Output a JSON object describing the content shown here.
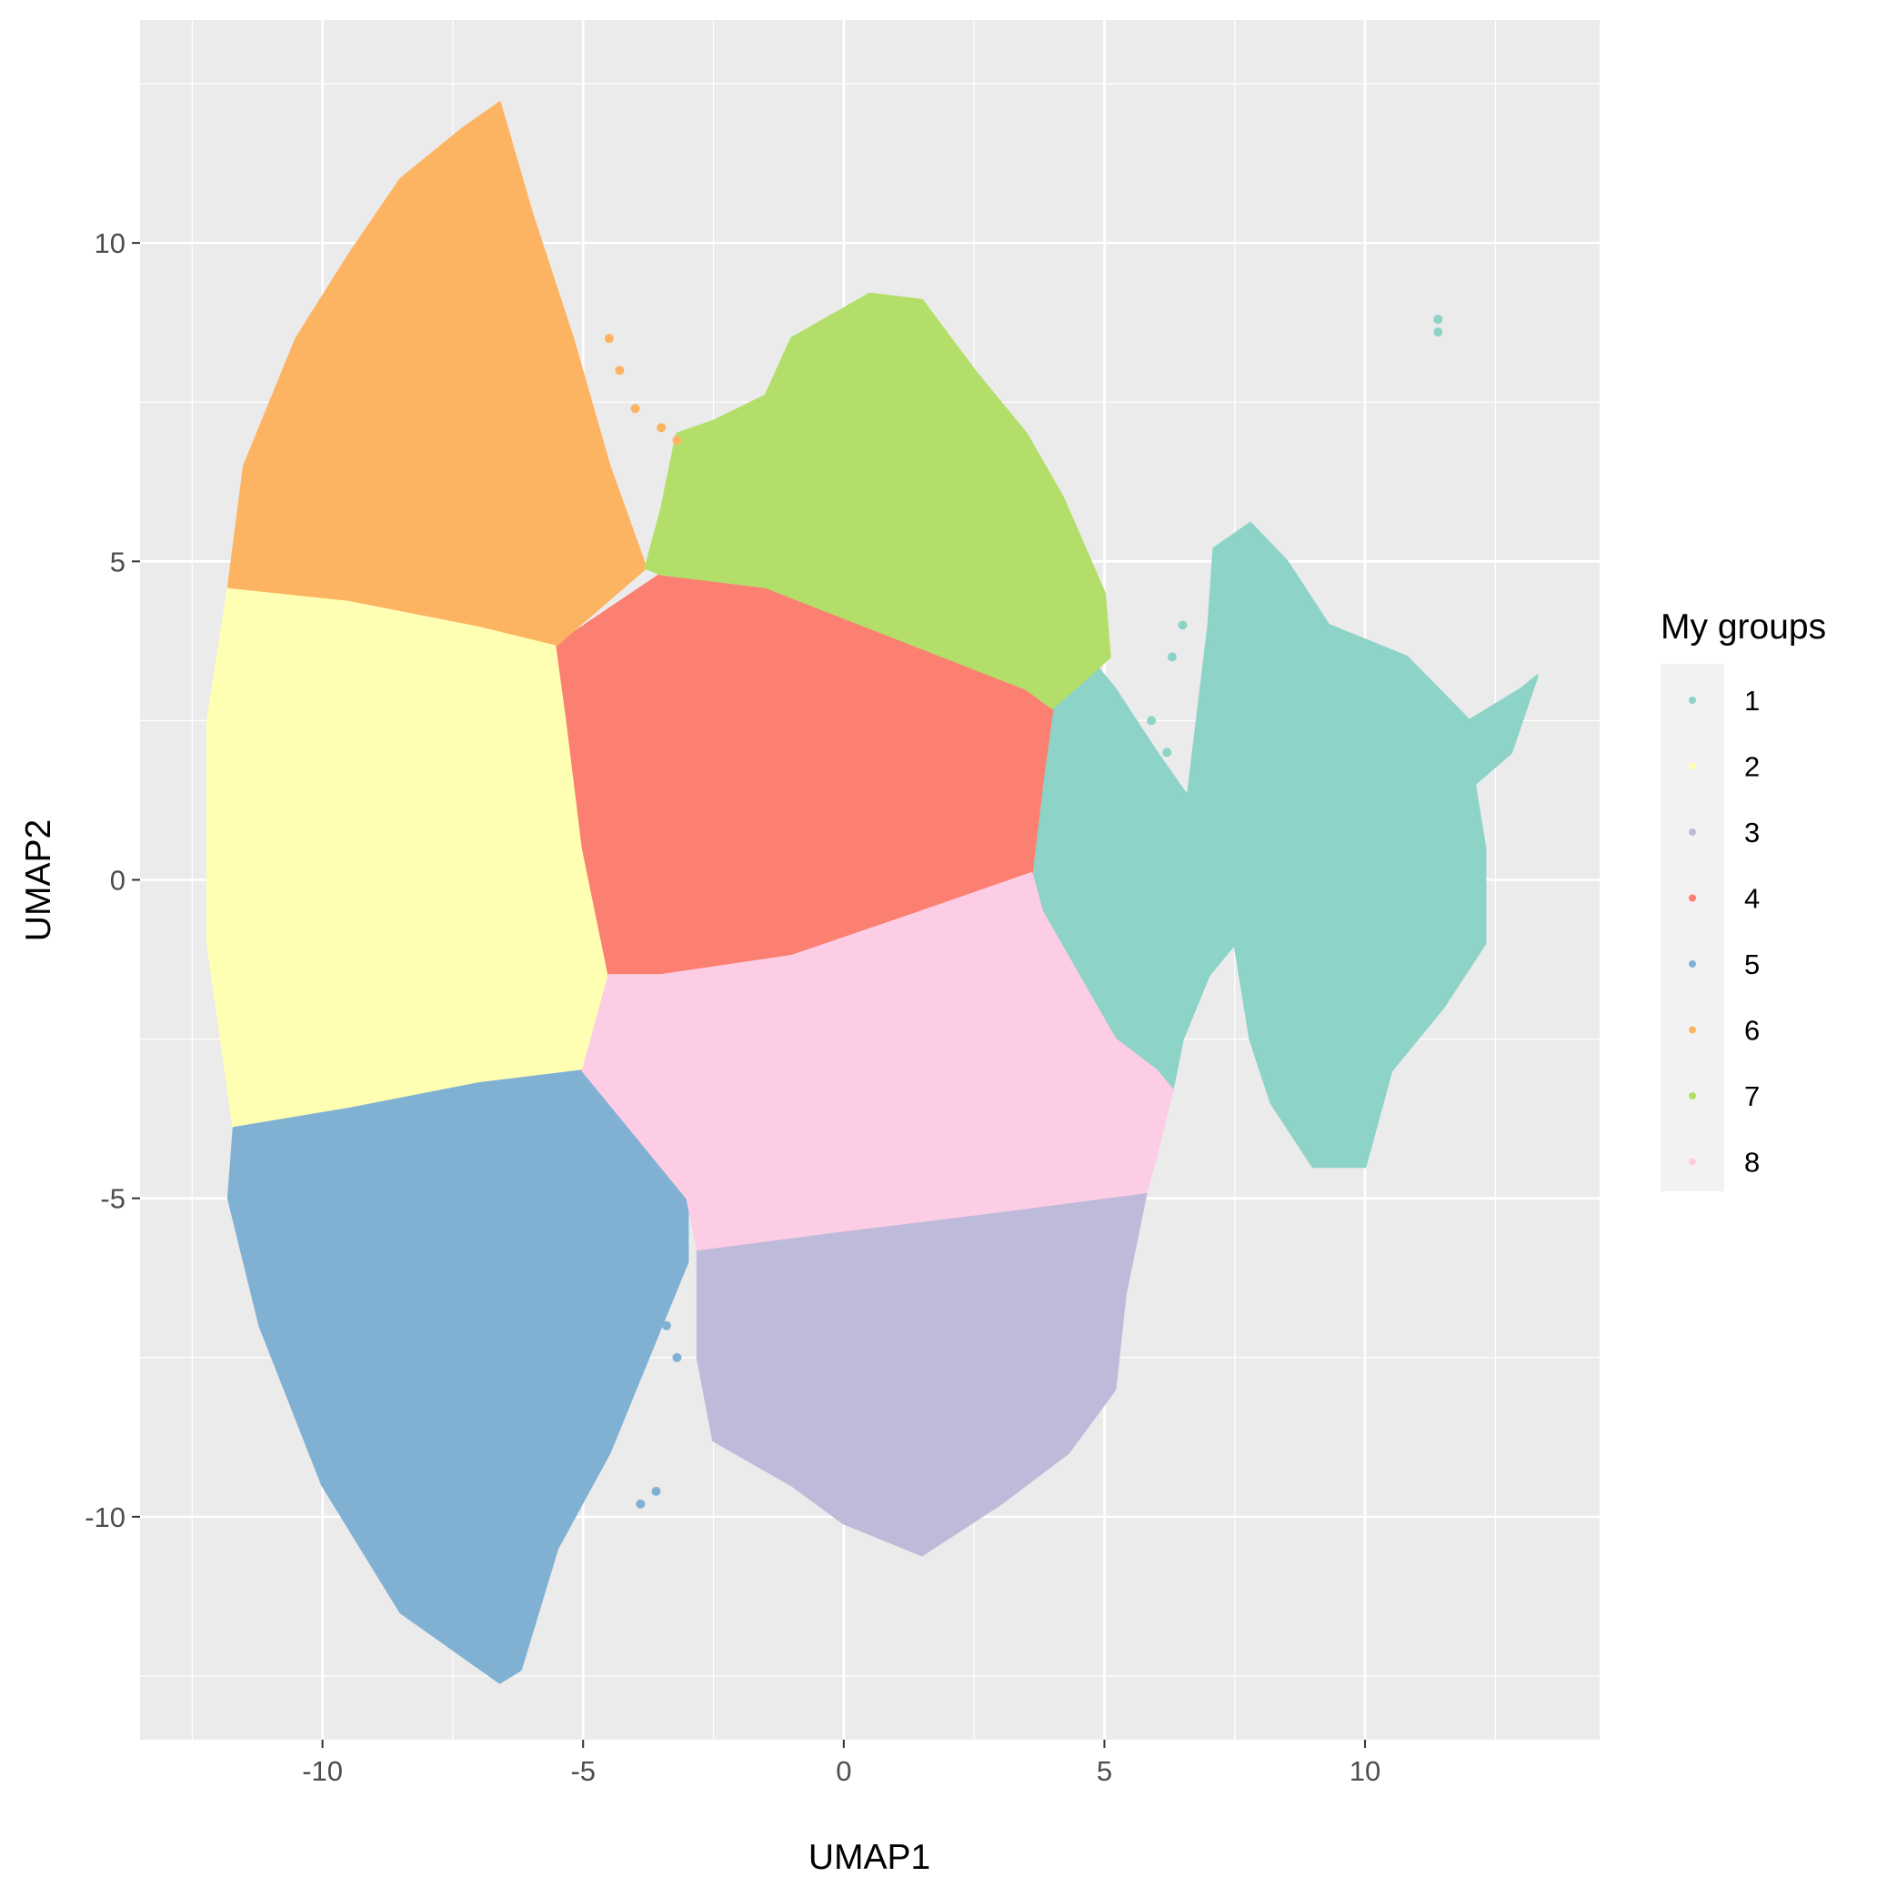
{
  "chart_data": {
    "type": "scatter",
    "title": "",
    "xlabel": "UMAP1",
    "ylabel": "UMAP2",
    "xlim": [
      -13.5,
      14.5
    ],
    "ylim": [
      -13.5,
      13.5
    ],
    "x_ticks": [
      -10,
      -5,
      0,
      5,
      10
    ],
    "y_ticks": [
      -10,
      -5,
      0,
      5,
      10
    ],
    "x_tick_labels": [
      "-10",
      "-5",
      "0",
      "5",
      "10"
    ],
    "y_tick_labels": [
      "-10",
      "-5",
      "0",
      "5",
      "10"
    ],
    "grid": true,
    "background": "#EBEBEB",
    "legend": {
      "title": "My groups",
      "position": "right",
      "entries": [
        "1",
        "2",
        "3",
        "4",
        "5",
        "6",
        "7",
        "8"
      ]
    },
    "series": [
      {
        "name": "1",
        "color": "#8DD3C7",
        "region": [
          [
            3.6,
            0.1
          ],
          [
            3.8,
            2.5
          ],
          [
            4.7,
            3.5
          ],
          [
            5.2,
            3.0
          ],
          [
            6.0,
            2.0
          ],
          [
            6.6,
            1.3
          ],
          [
            7.0,
            4.0
          ],
          [
            7.1,
            5.2
          ],
          [
            7.8,
            5.6
          ],
          [
            8.5,
            5.0
          ],
          [
            9.3,
            4.0
          ],
          [
            10.8,
            3.5
          ],
          [
            12.0,
            2.5
          ],
          [
            13.0,
            3.0
          ],
          [
            13.3,
            3.2
          ],
          [
            12.8,
            2.0
          ],
          [
            12.1,
            1.5
          ],
          [
            12.3,
            0.5
          ],
          [
            12.3,
            -1.0
          ],
          [
            11.5,
            -2.0
          ],
          [
            10.5,
            -3.0
          ],
          [
            10.0,
            -4.5
          ],
          [
            9.0,
            -4.5
          ],
          [
            8.2,
            -3.5
          ],
          [
            7.8,
            -2.5
          ],
          [
            7.5,
            -1.0
          ],
          [
            7.0,
            -1.5
          ],
          [
            6.5,
            -2.5
          ],
          [
            6.3,
            -3.3
          ],
          [
            6.0,
            -3.0
          ],
          [
            5.2,
            -2.5
          ],
          [
            4.5,
            -1.5
          ],
          [
            3.8,
            -0.5
          ]
        ]
      },
      {
        "name": "2",
        "color": "#FFFFB3",
        "region": [
          [
            -11.8,
            4.6
          ],
          [
            -9.5,
            4.4
          ],
          [
            -7.0,
            4.0
          ],
          [
            -5.5,
            3.7
          ],
          [
            -5.3,
            2.5
          ],
          [
            -5.0,
            0.5
          ],
          [
            -4.5,
            -1.5
          ],
          [
            -5.0,
            -3.0
          ],
          [
            -7.0,
            -3.2
          ],
          [
            -9.5,
            -3.6
          ],
          [
            -11.7,
            -3.9
          ],
          [
            -12.2,
            -1.0
          ],
          [
            -12.2,
            2.5
          ]
        ]
      },
      {
        "name": "3",
        "color": "#BEBADA",
        "region": [
          [
            -2.8,
            -5.8
          ],
          [
            0.0,
            -5.5
          ],
          [
            3.0,
            -5.2
          ],
          [
            5.8,
            -4.9
          ],
          [
            5.4,
            -6.5
          ],
          [
            5.2,
            -8.0
          ],
          [
            4.3,
            -9.0
          ],
          [
            3.0,
            -9.8
          ],
          [
            1.5,
            -10.6
          ],
          [
            0.0,
            -10.1
          ],
          [
            -1.0,
            -9.5
          ],
          [
            -2.5,
            -8.8
          ],
          [
            -2.8,
            -7.5
          ],
          [
            -2.8,
            -6.5
          ]
        ]
      },
      {
        "name": "4",
        "color": "#FB8072",
        "region": [
          [
            -5.5,
            3.7
          ],
          [
            -3.5,
            4.8
          ],
          [
            -1.5,
            4.6
          ],
          [
            1.0,
            3.8
          ],
          [
            3.5,
            3.0
          ],
          [
            4.0,
            2.7
          ],
          [
            3.8,
            1.5
          ],
          [
            3.6,
            0.1
          ],
          [
            1.5,
            -0.5
          ],
          [
            -1.0,
            -1.2
          ],
          [
            -3.5,
            -1.5
          ],
          [
            -4.5,
            -1.5
          ],
          [
            -5.0,
            0.5
          ],
          [
            -5.3,
            2.5
          ]
        ]
      },
      {
        "name": "5",
        "color": "#80B1D3",
        "region": [
          [
            -11.7,
            -3.9
          ],
          [
            -9.5,
            -3.6
          ],
          [
            -7.0,
            -3.2
          ],
          [
            -5.0,
            -3.0
          ],
          [
            -4.0,
            -4.0
          ],
          [
            -3.0,
            -5.0
          ],
          [
            -3.0,
            -6.0
          ],
          [
            -3.5,
            -7.0
          ],
          [
            -4.5,
            -9.0
          ],
          [
            -5.5,
            -10.5
          ],
          [
            -6.2,
            -12.4
          ],
          [
            -6.6,
            -12.6
          ],
          [
            -8.5,
            -11.5
          ],
          [
            -10.0,
            -9.5
          ],
          [
            -11.2,
            -7.0
          ],
          [
            -11.8,
            -5.0
          ]
        ]
      },
      {
        "name": "6",
        "color": "#FDB462",
        "region": [
          [
            -11.8,
            4.6
          ],
          [
            -11.5,
            6.5
          ],
          [
            -10.5,
            8.5
          ],
          [
            -9.5,
            9.8
          ],
          [
            -8.5,
            11.0
          ],
          [
            -7.3,
            11.8
          ],
          [
            -6.6,
            12.2
          ],
          [
            -6.0,
            10.5
          ],
          [
            -5.2,
            8.5
          ],
          [
            -4.5,
            6.5
          ],
          [
            -3.8,
            4.9
          ],
          [
            -5.5,
            3.7
          ],
          [
            -7.0,
            4.0
          ],
          [
            -9.5,
            4.4
          ]
        ]
      },
      {
        "name": "7",
        "color": "#B3DE69",
        "region": [
          [
            -3.8,
            4.9
          ],
          [
            -3.5,
            5.8
          ],
          [
            -3.2,
            7.0
          ],
          [
            -2.5,
            7.2
          ],
          [
            -1.5,
            7.6
          ],
          [
            -1.0,
            8.5
          ],
          [
            0.5,
            9.2
          ],
          [
            1.5,
            9.1
          ],
          [
            2.5,
            8.0
          ],
          [
            3.5,
            7.0
          ],
          [
            4.2,
            6.0
          ],
          [
            5.0,
            4.5
          ],
          [
            5.1,
            3.5
          ],
          [
            4.7,
            3.2
          ],
          [
            4.0,
            2.7
          ],
          [
            3.5,
            3.0
          ],
          [
            1.0,
            3.8
          ],
          [
            -1.5,
            4.6
          ],
          [
            -3.5,
            4.8
          ]
        ]
      },
      {
        "name": "8",
        "color": "#FCCDE5",
        "region": [
          [
            -4.5,
            -1.5
          ],
          [
            -3.5,
            -1.5
          ],
          [
            -1.0,
            -1.2
          ],
          [
            1.5,
            -0.5
          ],
          [
            3.6,
            0.1
          ],
          [
            3.8,
            -0.5
          ],
          [
            4.5,
            -1.5
          ],
          [
            5.2,
            -2.5
          ],
          [
            6.0,
            -3.0
          ],
          [
            6.3,
            -3.3
          ],
          [
            6.0,
            -4.3
          ],
          [
            5.8,
            -4.9
          ],
          [
            3.0,
            -5.2
          ],
          [
            0.0,
            -5.5
          ],
          [
            -2.8,
            -5.8
          ],
          [
            -3.0,
            -5.0
          ],
          [
            -4.0,
            -4.0
          ],
          [
            -5.0,
            -3.0
          ]
        ]
      }
    ],
    "outlier_points": [
      {
        "group": "1",
        "x": 11.4,
        "y": 8.8
      },
      {
        "group": "1",
        "x": 11.4,
        "y": 8.6
      },
      {
        "group": "6",
        "x": -4.5,
        "y": 8.5
      },
      {
        "group": "6",
        "x": -4.3,
        "y": 8.0
      },
      {
        "group": "6",
        "x": -4.0,
        "y": 7.4
      },
      {
        "group": "6",
        "x": -3.5,
        "y": 7.1
      },
      {
        "group": "6",
        "x": -3.2,
        "y": 6.9
      },
      {
        "group": "5",
        "x": -3.6,
        "y": -9.6
      },
      {
        "group": "5",
        "x": -3.9,
        "y": -9.8
      },
      {
        "group": "5",
        "x": -4.5,
        "y": -8.5
      },
      {
        "group": "5",
        "x": -3.2,
        "y": -7.5
      },
      {
        "group": "5",
        "x": -3.4,
        "y": -7.0
      },
      {
        "group": "1",
        "x": 6.5,
        "y": 4.0
      },
      {
        "group": "1",
        "x": 6.3,
        "y": 3.5
      },
      {
        "group": "1",
        "x": 5.9,
        "y": 2.5
      },
      {
        "group": "1",
        "x": 6.2,
        "y": 2.0
      }
    ]
  }
}
